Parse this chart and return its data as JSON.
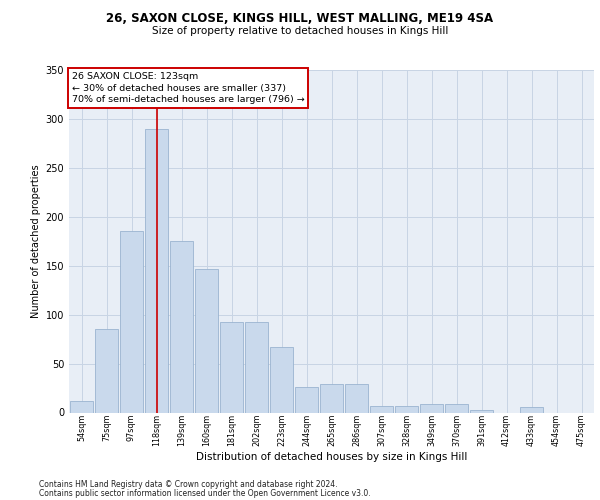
{
  "title_line1": "26, SAXON CLOSE, KINGS HILL, WEST MALLING, ME19 4SA",
  "title_line2": "Size of property relative to detached houses in Kings Hill",
  "xlabel": "Distribution of detached houses by size in Kings Hill",
  "ylabel": "Number of detached properties",
  "footer_line1": "Contains HM Land Registry data © Crown copyright and database right 2024.",
  "footer_line2": "Contains public sector information licensed under the Open Government Licence v3.0.",
  "property_label": "26 SAXON CLOSE: 123sqm",
  "annotation_line1": "← 30% of detached houses are smaller (337)",
  "annotation_line2": "70% of semi-detached houses are larger (796) →",
  "bar_color": "#c9d9ec",
  "bar_edge_color": "#9ab4d0",
  "grid_color": "#c8d4e4",
  "vline_color": "#cc0000",
  "background_color": "#e8eef6",
  "categories": [
    "54sqm",
    "75sqm",
    "97sqm",
    "118sqm",
    "139sqm",
    "160sqm",
    "181sqm",
    "202sqm",
    "223sqm",
    "244sqm",
    "265sqm",
    "286sqm",
    "307sqm",
    "328sqm",
    "349sqm",
    "370sqm",
    "391sqm",
    "412sqm",
    "433sqm",
    "454sqm",
    "475sqm"
  ],
  "values": [
    12,
    85,
    185,
    290,
    175,
    147,
    92,
    92,
    67,
    26,
    29,
    29,
    7,
    7,
    9,
    9,
    3,
    0,
    6,
    0,
    0
  ],
  "ylim": [
    0,
    350
  ],
  "yticks": [
    0,
    50,
    100,
    150,
    200,
    250,
    300,
    350
  ],
  "vline_position": 3.0,
  "annotation_box_facecolor": "white",
  "annotation_box_edgecolor": "#cc0000",
  "title1_fontsize": 8.5,
  "title2_fontsize": 7.5,
  "ylabel_fontsize": 7.0,
  "xlabel_fontsize": 7.5,
  "ytick_fontsize": 7.0,
  "xtick_fontsize": 5.8,
  "annotation_fontsize": 6.8,
  "footer_fontsize": 5.5
}
